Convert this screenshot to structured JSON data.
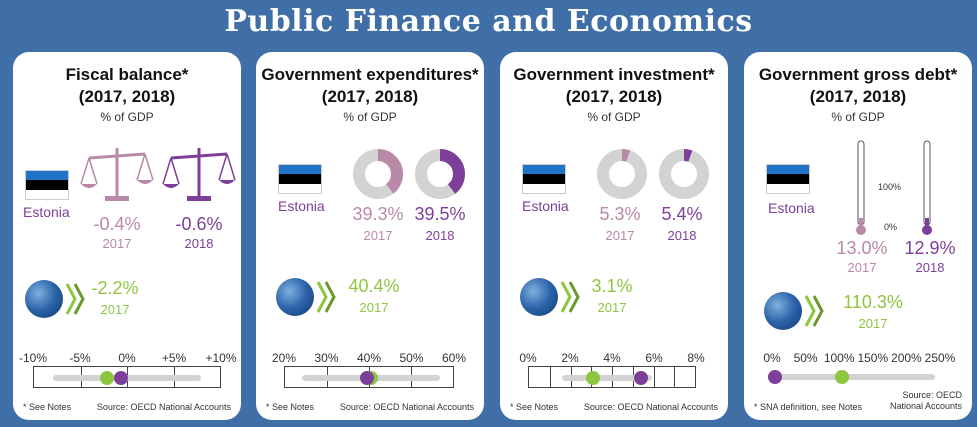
{
  "page_title": "Public Finance and Economics",
  "colors": {
    "c2017": "#b989a8",
    "c2018": "#7e3f98",
    "oecd": "#8dc63f",
    "background": "#3f6fa6"
  },
  "cards": [
    {
      "title": "Fiscal balance*",
      "period": "(2017, 2018)",
      "unit": "% of GDP",
      "country": "Estonia",
      "visual": "scales-icon",
      "v2017": "-0.4%",
      "y2017": "2017",
      "v2018": "-0.6%",
      "y2018": "2018",
      "oecd_value": "-2.2%",
      "oecd_year": "2017",
      "scale_ticks": [
        "-10%",
        "-5%",
        "0%",
        "+5%",
        "+10%"
      ],
      "scale_min": -10,
      "scale_max": 10,
      "marker_2018": -0.6,
      "marker_oecd": -2.2,
      "footnote": "* See Notes",
      "source": "Source: OECD National Accounts"
    },
    {
      "title": "Government expenditures*",
      "period": "(2017, 2018)",
      "unit": "% of GDP",
      "country": "Estonia",
      "visual": "donut",
      "donut_2017": 39.3,
      "donut_2018": 39.5,
      "v2017": "39.3%",
      "y2017": "2017",
      "v2018": "39.5%",
      "y2018": "2018",
      "oecd_value": "40.4%",
      "oecd_year": "2017",
      "scale_ticks": [
        "20%",
        "30%",
        "40%",
        "50%",
        "60%"
      ],
      "scale_min": 20,
      "scale_max": 60,
      "marker_2018": 39.5,
      "marker_oecd": 40.4,
      "footnote": "* See Notes",
      "source": "Source: OECD National Accounts"
    },
    {
      "title": "Government investment*",
      "period": "(2017, 2018)",
      "unit": "% of GDP",
      "country": "Estonia",
      "visual": "donut",
      "donut_2017": 5.3,
      "donut_2018": 5.4,
      "v2017": "5.3%",
      "y2017": "2017",
      "v2018": "5.4%",
      "y2018": "2018",
      "oecd_value": "3.1%",
      "oecd_year": "2017",
      "scale_ticks": [
        "0%",
        "2%",
        "4%",
        "6%",
        "8%"
      ],
      "scale_min": 0,
      "scale_max": 8,
      "marker_2018": 5.4,
      "marker_oecd": 3.1,
      "footnote": "* See Notes",
      "source": "Source: OECD National Accounts"
    },
    {
      "title": "Government gross debt*",
      "period": "(2017, 2018)",
      "unit": "% of GDP",
      "country": "Estonia",
      "visual": "thermometer",
      "thermo_top_label": "100%",
      "thermo_bottom_label": "0%",
      "v2017": "13.0%",
      "y2017": "2017",
      "v2018": "12.9%",
      "y2018": "2018",
      "oecd_value": "110.3%",
      "oecd_year": "2017",
      "scale_ticks": [
        "0%",
        "50%",
        "100%",
        "150%",
        "200%",
        "250%"
      ],
      "scale_min": 0,
      "scale_max": 250,
      "marker_2018": 12.9,
      "marker_oecd": 110.3,
      "footnote": "* SNA definition, see Notes",
      "source_line1": "Source: OECD",
      "source_line2": "National Accounts"
    }
  ]
}
